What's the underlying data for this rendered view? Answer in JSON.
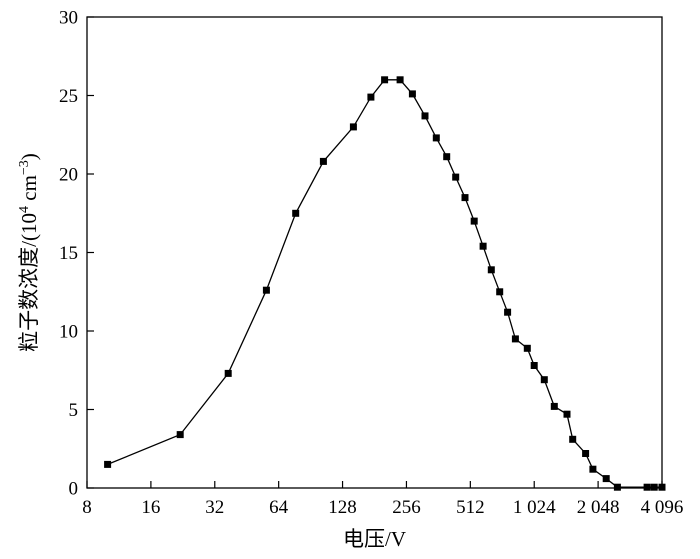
{
  "chart_data": {
    "type": "line",
    "xlabel": "电压/V",
    "ylabel_main": "粒子数浓度/(10",
    "ylabel_exp1": "4",
    "ylabel_unit": " cm",
    "ylabel_exp2": "−3",
    "ylabel_close": ")",
    "x_scale": "log2",
    "xlim": [
      8,
      4096
    ],
    "ylim": [
      0,
      30
    ],
    "x_ticks": [
      8,
      16,
      32,
      64,
      128,
      256,
      512,
      1024,
      2048,
      4096
    ],
    "x_tick_labels": [
      "8",
      "16",
      "32",
      "64",
      "128",
      "256",
      "512",
      "1 024",
      "2 048",
      "4 096"
    ],
    "y_ticks": [
      0,
      5,
      10,
      15,
      20,
      25,
      30
    ],
    "y_tick_labels": [
      "0",
      "5",
      "10",
      "15",
      "20",
      "25",
      "30"
    ],
    "marker": "square",
    "color": "#000000",
    "series": [
      {
        "x": [
          10,
          22,
          37,
          56,
          77,
          104,
          144,
          174,
          202,
          239,
          273,
          313,
          354,
          396,
          437,
          483,
          534,
          588,
          643,
          704,
          767,
          835,
          950,
          1024,
          1142,
          1273,
          1462,
          1555,
          1788,
          1936,
          2236,
          2526,
          3484,
          3763,
          4096
        ],
        "y": [
          1.5,
          3.4,
          7.3,
          12.6,
          17.5,
          20.8,
          23.0,
          24.9,
          26.0,
          26.0,
          25.1,
          23.7,
          22.3,
          21.1,
          19.8,
          18.5,
          17.0,
          15.4,
          13.9,
          12.5,
          11.2,
          9.5,
          8.9,
          7.8,
          6.9,
          5.2,
          4.7,
          3.1,
          2.2,
          1.2,
          0.6,
          0.05,
          0.05,
          0.05,
          0.05
        ]
      }
    ]
  }
}
